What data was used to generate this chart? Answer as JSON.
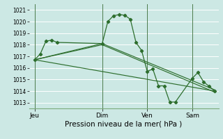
{
  "background_color": "#cce8e4",
  "grid_color": "#ffffff",
  "line_color": "#2d6e2d",
  "vline_color": "#4a7a4a",
  "xlabel": "Pression niveau de la mer( hPa )",
  "ylim": [
    1012.5,
    1021.5
  ],
  "yticks": [
    1013,
    1014,
    1015,
    1016,
    1017,
    1018,
    1019,
    1020,
    1021
  ],
  "day_labels": [
    "Jeu",
    "Dim",
    "Ven",
    "Sam"
  ],
  "day_positions": [
    0,
    36,
    60,
    84
  ],
  "xlim": [
    -3,
    98
  ],
  "series1": [
    [
      0,
      1016.7
    ],
    [
      3,
      1017.2
    ],
    [
      6,
      1018.3
    ],
    [
      9,
      1018.4
    ],
    [
      12,
      1018.2
    ],
    [
      36,
      1018.1
    ],
    [
      39,
      1020.0
    ],
    [
      42,
      1020.5
    ],
    [
      45,
      1020.6
    ],
    [
      48,
      1020.55
    ],
    [
      51,
      1020.2
    ],
    [
      54,
      1018.2
    ],
    [
      57,
      1017.5
    ],
    [
      60,
      1015.7
    ],
    [
      63,
      1015.9
    ],
    [
      66,
      1014.45
    ],
    [
      69,
      1014.45
    ],
    [
      72,
      1013.05
    ],
    [
      75,
      1013.05
    ],
    [
      84,
      1015.1
    ],
    [
      87,
      1015.6
    ],
    [
      90,
      1014.8
    ],
    [
      93,
      1014.4
    ],
    [
      96,
      1014.0
    ]
  ],
  "series2": [
    [
      0,
      1016.7
    ],
    [
      96,
      1014.0
    ]
  ],
  "series3": [
    [
      0,
      1016.7
    ],
    [
      36,
      1018.0
    ],
    [
      96,
      1013.9
    ]
  ],
  "series4": [
    [
      0,
      1016.7
    ],
    [
      36,
      1018.1
    ],
    [
      96,
      1014.1
    ]
  ]
}
